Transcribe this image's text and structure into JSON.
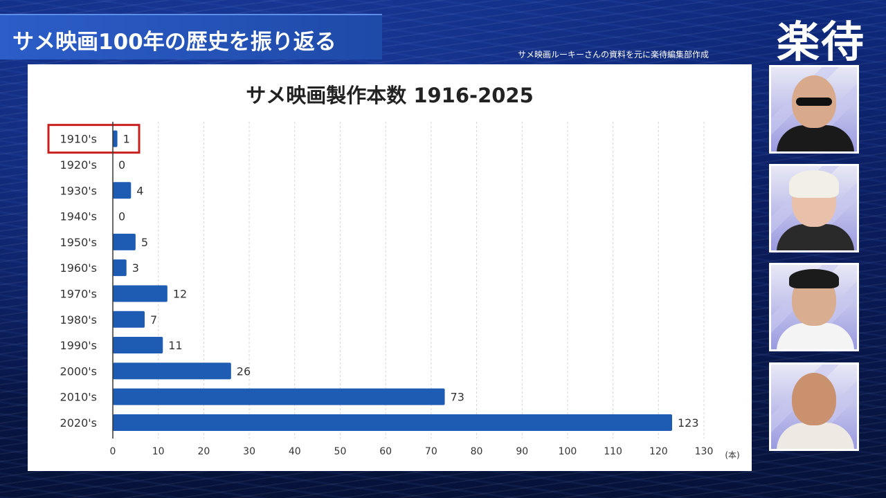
{
  "header": {
    "banner_title": "サメ映画100年の歴史を振り返る",
    "logo": "楽待",
    "credit": "サメ映画ルーキーさんの資料を元に楽待編集部作成"
  },
  "panelists": [
    {
      "name": "panelist-1"
    },
    {
      "name": "panelist-2"
    },
    {
      "name": "panelist-3"
    },
    {
      "name": "panelist-4"
    }
  ],
  "chart_data": {
    "type": "bar",
    "orientation": "horizontal",
    "title": "サメ映画製作本数 1916-2025",
    "categories": [
      "1910's",
      "1920's",
      "1930's",
      "1940's",
      "1950's",
      "1960's",
      "1970's",
      "1980's",
      "1990's",
      "2000's",
      "2010's",
      "2020's"
    ],
    "values": [
      1,
      0,
      4,
      0,
      5,
      3,
      12,
      7,
      11,
      26,
      73,
      123
    ],
    "xlim": [
      0,
      130
    ],
    "xticks": [
      0,
      10,
      20,
      30,
      40,
      50,
      60,
      70,
      80,
      90,
      100,
      110,
      120,
      130
    ],
    "unit_label": "(本)",
    "grid": "vertical-dashed",
    "bar_color": "#1e5cb3",
    "highlight": {
      "category": "1910's",
      "color": "#c81e1e"
    }
  }
}
